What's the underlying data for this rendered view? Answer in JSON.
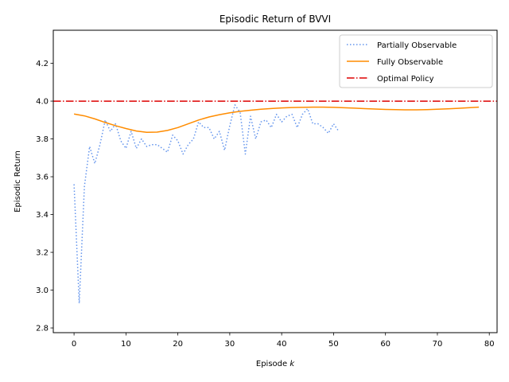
{
  "chart_data": {
    "type": "line",
    "title": "Episodic Return of BVVI",
    "xlabel_text": "Episode ",
    "xlabel_var": "k",
    "ylabel": "Episodic Return",
    "xlim": [
      -4,
      81.5
    ],
    "ylim": [
      2.775,
      4.375
    ],
    "xticks": [
      0,
      10,
      20,
      30,
      40,
      50,
      60,
      70,
      80
    ],
    "yticks": [
      2.8,
      3.0,
      3.2,
      3.4,
      3.6,
      3.8,
      4.0,
      4.2
    ],
    "ytick_labels": [
      "2.8",
      "3.0",
      "3.2",
      "3.4",
      "3.6",
      "3.8",
      "4.0",
      "4.2"
    ],
    "grid": false,
    "legend_position": "upper right",
    "series": [
      {
        "name": "Partially Observable",
        "color": "#6495ED",
        "style": "dotted",
        "x": [
          0,
          1,
          2,
          3,
          4,
          5,
          6,
          7,
          8,
          9,
          10,
          11,
          12,
          13,
          14,
          15,
          16,
          17,
          18,
          19,
          20,
          21,
          22,
          23,
          24,
          25,
          26,
          27,
          28,
          29,
          30,
          31,
          32,
          33,
          34,
          35,
          36,
          37,
          38,
          39,
          40,
          41,
          42,
          43,
          44,
          45,
          46,
          47,
          48,
          49,
          50,
          51
        ],
        "y": [
          3.56,
          2.93,
          3.55,
          3.76,
          3.67,
          3.77,
          3.9,
          3.84,
          3.88,
          3.79,
          3.75,
          3.84,
          3.75,
          3.8,
          3.76,
          3.77,
          3.77,
          3.75,
          3.73,
          3.82,
          3.79,
          3.72,
          3.77,
          3.8,
          3.89,
          3.86,
          3.86,
          3.8,
          3.84,
          3.74,
          3.87,
          3.98,
          3.94,
          3.72,
          3.92,
          3.8,
          3.89,
          3.9,
          3.86,
          3.93,
          3.89,
          3.92,
          3.93,
          3.86,
          3.93,
          3.96,
          3.88,
          3.88,
          3.86,
          3.83,
          3.88,
          3.84
        ]
      },
      {
        "name": "Fully Observable",
        "color": "#FF8C00",
        "style": "solid",
        "x": [
          0,
          2,
          4,
          6,
          8,
          10,
          12,
          14,
          16,
          18,
          20,
          22,
          24,
          26,
          28,
          30,
          32,
          34,
          36,
          38,
          40,
          42,
          44,
          46,
          48,
          50,
          52,
          54,
          56,
          58,
          60,
          62,
          64,
          66,
          68,
          70,
          72,
          74,
          76,
          78
        ],
        "y": [
          3.932,
          3.922,
          3.906,
          3.887,
          3.87,
          3.855,
          3.842,
          3.835,
          3.836,
          3.845,
          3.86,
          3.88,
          3.9,
          3.916,
          3.928,
          3.938,
          3.946,
          3.952,
          3.957,
          3.961,
          3.964,
          3.966,
          3.967,
          3.968,
          3.968,
          3.967,
          3.965,
          3.963,
          3.96,
          3.958,
          3.956,
          3.955,
          3.954,
          3.954,
          3.955,
          3.957,
          3.959,
          3.962,
          3.965,
          3.968
        ]
      },
      {
        "name": "Optimal Policy",
        "color": "#DD0000",
        "style": "dashdot",
        "hline": 4.0
      }
    ]
  }
}
